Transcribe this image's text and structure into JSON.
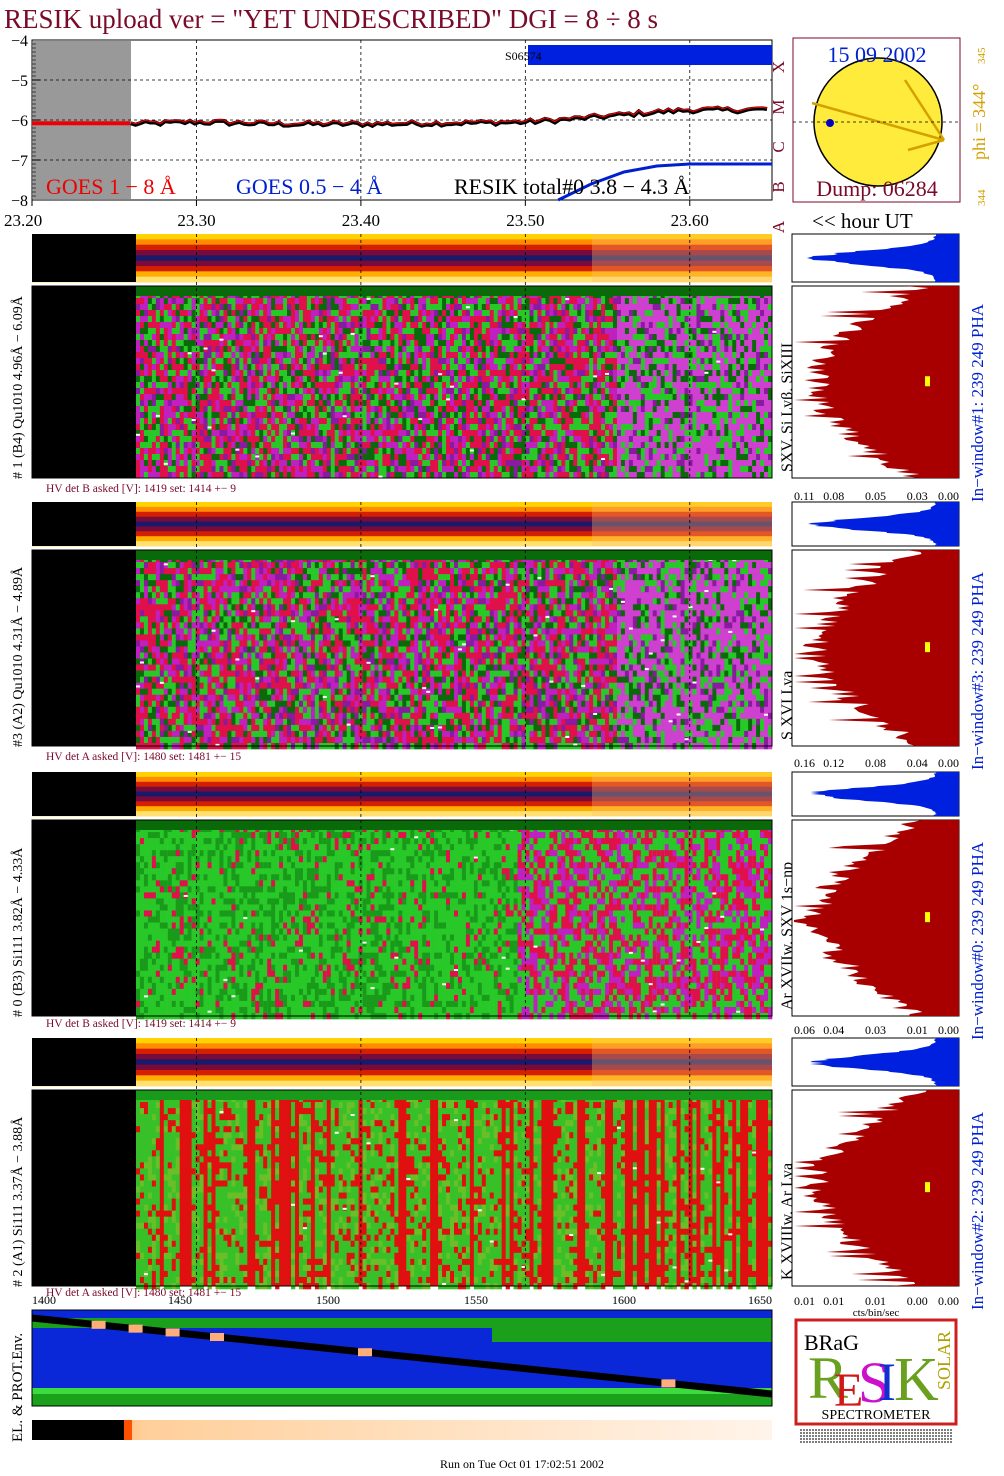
{
  "header": {
    "title": "RESIK upload ver = \"YET UNDESCRIBED\"  DGI =   8 ÷   8 s"
  },
  "goes": {
    "yticks": [
      "−4",
      "−5",
      "−6",
      "−7",
      "−8"
    ],
    "class_letters": [
      "X",
      "M",
      "C",
      "B",
      "A"
    ],
    "legend_goes18": "GOES 1 − 8 Å",
    "legend_goes054": "GOES 0.5 − 4 Å",
    "legend_resik": "RESIK total#0  3.8 − 4.3 Å",
    "satellite_label": "S06574",
    "time_ticks": [
      "23.20",
      "23.30",
      "23.40",
      "23.50",
      "23.60"
    ],
    "time_axis_label": "<< hour UT"
  },
  "sun": {
    "date": "15 09 2002",
    "phi_label": "phi = 344°",
    "phi_top": "345",
    "phi_bottom": "344",
    "dump": "Dump: 06284"
  },
  "panels": [
    {
      "left_label": "# 1 (B4) Qu1010 4.96Å − 6.09Å",
      "lines_label": "SXV, Si Lyβ, SiXIII",
      "right_label": "In−window#1:  239 249 PHA",
      "hv": "HV det B asked [V]:  1419 set:  1414  +−    9",
      "x_ticks": [
        "0.11",
        "0.08",
        "0.05",
        "0.03",
        "0.00"
      ]
    },
    {
      "left_label": "#3 (A2) Qu1010  4.31Å − 4.89Å",
      "lines_label": "S XVI Lya",
      "right_label": "In−window#3:  239 249 PHA",
      "hv": "HV det A asked [V]:  1480 set:  1481  +−    15",
      "x_ticks": [
        "0.16",
        "0.12",
        "0.08",
        "0.04",
        "0.00"
      ]
    },
    {
      "left_label": "# 0 (B3) Si111  3.82Å − 4.33Å",
      "lines_label": "Ar XVIIw, SXV 1s−np",
      "right_label": "In−window#0:  239 249 PHA",
      "hv": "HV det B asked [V]:  1419 set:  1414  +−    9",
      "x_ticks": [
        "0.06",
        "0.04",
        "0.03",
        "0.01",
        "0.00"
      ]
    },
    {
      "left_label": "# 2 (A1) Si111  3.37Å − 3.88Å",
      "lines_label": "K XVIIIw, Ar Lya",
      "right_label": "In−window#2:  239 249 PHA",
      "hv": "HV det A asked [V]:  1480 set:  1481  +−    15",
      "x_ticks": [
        "0.01",
        "0.01",
        "0.01",
        "0.00",
        "0.00"
      ]
    }
  ],
  "bottom": {
    "x_ticks": [
      "1400",
      "1450",
      "1500",
      "1550",
      "1600",
      "1650"
    ],
    "hist_xlabel": "cts/bin/sec",
    "env_label": "EL. & PROT.Env.",
    "run_on": "Run on Tue Oct 01 17:02:51 2002"
  },
  "logo": {
    "letters_main": "RESIK",
    "brag": "BRaG",
    "solar": "SOLAR",
    "caption": "SPECTROMETER"
  },
  "chart_data": {
    "type": "line",
    "title": "RESIK upload ver = \"YET UNDESCRIBED\"  DGI =   8 ÷   8 s",
    "xlabel": "<< hour UT",
    "ylabel": "",
    "x_range": [
      23.2,
      23.65
    ],
    "ylim": [
      -8,
      -4
    ],
    "series": [
      {
        "name": "GOES 1 − 8 Å",
        "x": [
          23.26,
          23.3,
          23.35,
          23.4,
          23.45,
          23.5,
          23.52,
          23.55,
          23.58,
          23.6,
          23.63,
          23.65
        ],
        "values": [
          -6.1,
          -6.05,
          -6.1,
          -6.1,
          -6.08,
          -6.05,
          -6.0,
          -5.9,
          -5.8,
          -5.75,
          -5.75,
          -5.72
        ]
      },
      {
        "name": "GOES 0.5 − 4 Å",
        "x": [
          23.52,
          23.54,
          23.56,
          23.58,
          23.6,
          23.62,
          23.65
        ],
        "values": [
          -8.0,
          -7.6,
          -7.3,
          -7.15,
          -7.1,
          -7.1,
          -7.1
        ]
      }
    ]
  }
}
